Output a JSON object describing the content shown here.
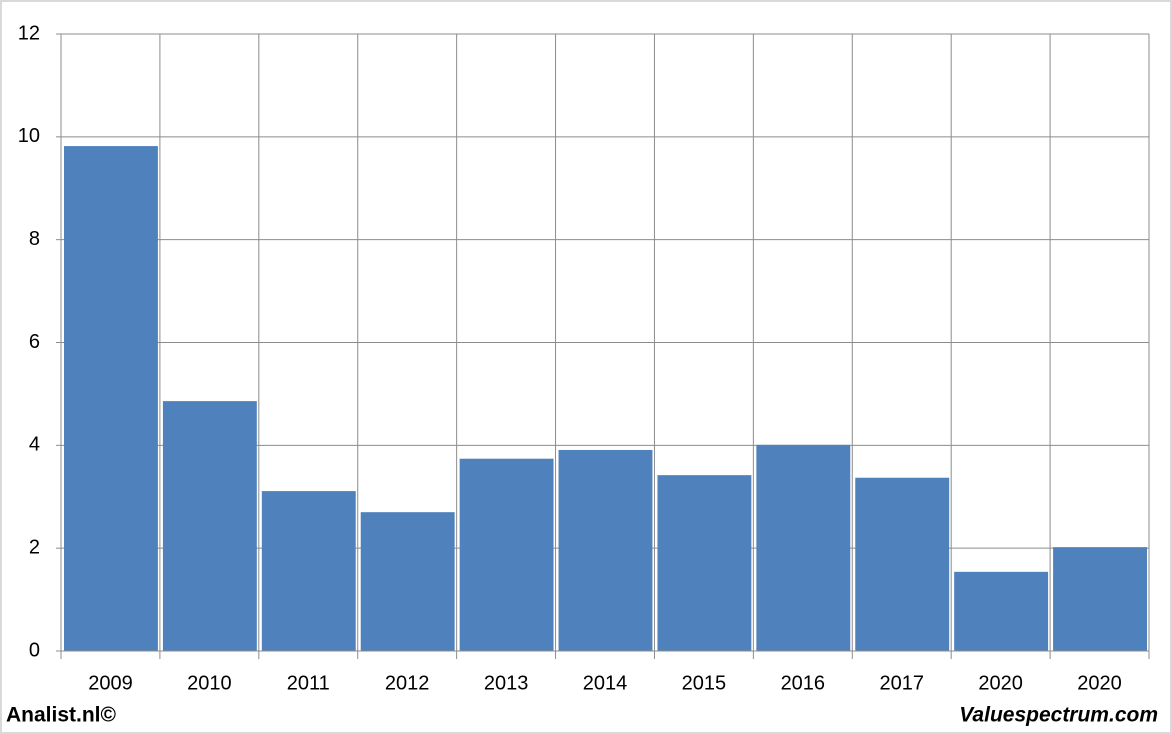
{
  "chart_data": {
    "type": "bar",
    "categories": [
      "2009",
      "2010",
      "2011",
      "2012",
      "2013",
      "2014",
      "2015",
      "2016",
      "2017",
      "2020",
      "2020"
    ],
    "values": [
      9.82,
      4.86,
      3.11,
      2.7,
      3.74,
      3.91,
      3.42,
      4.01,
      3.37,
      1.54,
      2.02
    ],
    "color": "#4f81bd",
    "ylim": [
      0,
      12
    ],
    "yticks": [
      0,
      2,
      4,
      6,
      8,
      10,
      12
    ],
    "grid": true,
    "footer_left": "Analist.nl©",
    "footer_right": "Valuespectrum.com"
  }
}
